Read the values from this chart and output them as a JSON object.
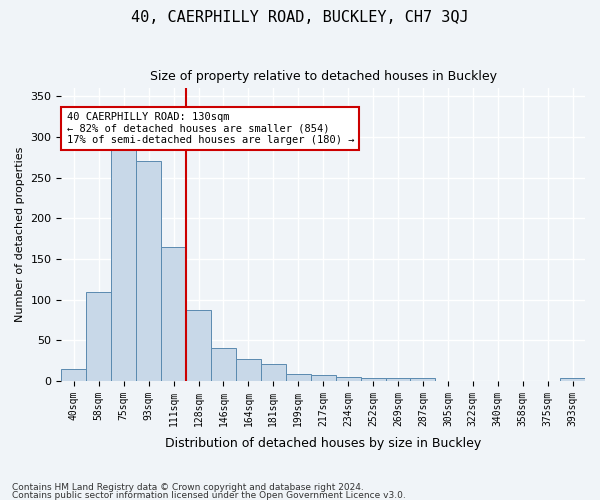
{
  "title": "40, CAERPHILLY ROAD, BUCKLEY, CH7 3QJ",
  "subtitle": "Size of property relative to detached houses in Buckley",
  "xlabel": "Distribution of detached houses by size in Buckley",
  "ylabel": "Number of detached properties",
  "bar_color": "#c8d8e8",
  "bar_edge_color": "#5a8ab0",
  "categories": [
    "40sqm",
    "58sqm",
    "75sqm",
    "93sqm",
    "111sqm",
    "128sqm",
    "146sqm",
    "164sqm",
    "181sqm",
    "199sqm",
    "217sqm",
    "234sqm",
    "252sqm",
    "269sqm",
    "287sqm",
    "305sqm",
    "322sqm",
    "340sqm",
    "358sqm",
    "375sqm",
    "393sqm"
  ],
  "values": [
    15,
    110,
    292,
    270,
    165,
    87,
    41,
    27,
    21,
    8,
    7,
    5,
    4,
    3,
    4,
    0,
    0,
    0,
    0,
    0,
    3
  ],
  "vline_x": 5,
  "vline_color": "#cc0000",
  "annotation_text": "40 CAERPHILLY ROAD: 130sqm\n← 82% of detached houses are smaller (854)\n17% of semi-detached houses are larger (180) →",
  "annotation_box_color": "#ffffff",
  "annotation_box_edge_color": "#cc0000",
  "ylim": [
    0,
    360
  ],
  "yticks": [
    0,
    50,
    100,
    150,
    200,
    250,
    300,
    350
  ],
  "footnote1": "Contains HM Land Registry data © Crown copyright and database right 2024.",
  "footnote2": "Contains public sector information licensed under the Open Government Licence v3.0.",
  "background_color": "#f0f4f8",
  "grid_color": "#ffffff"
}
